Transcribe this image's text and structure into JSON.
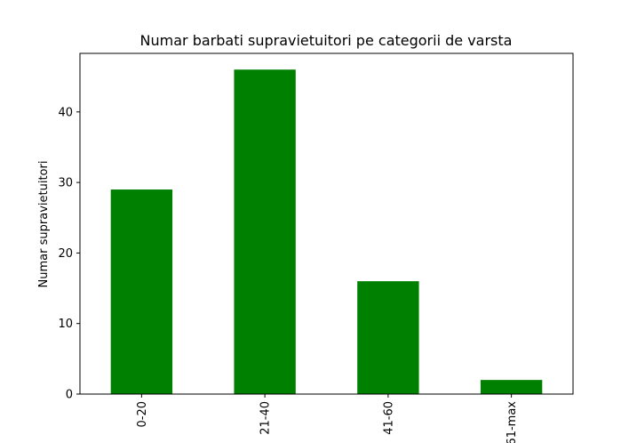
{
  "chart_data": {
    "type": "bar",
    "title": "Numar barbati supravietuitori pe categorii de varsta",
    "xlabel": "",
    "ylabel": "Numar supravietuitori",
    "categories": [
      "0-20",
      "21-40",
      "41-60",
      "61-max"
    ],
    "values": [
      29,
      46,
      16,
      2
    ],
    "ylim": [
      0,
      48.3
    ],
    "yticks": [
      0,
      10,
      20,
      30,
      40
    ],
    "bar_color": "#008000",
    "grid": false,
    "legend": "none"
  }
}
